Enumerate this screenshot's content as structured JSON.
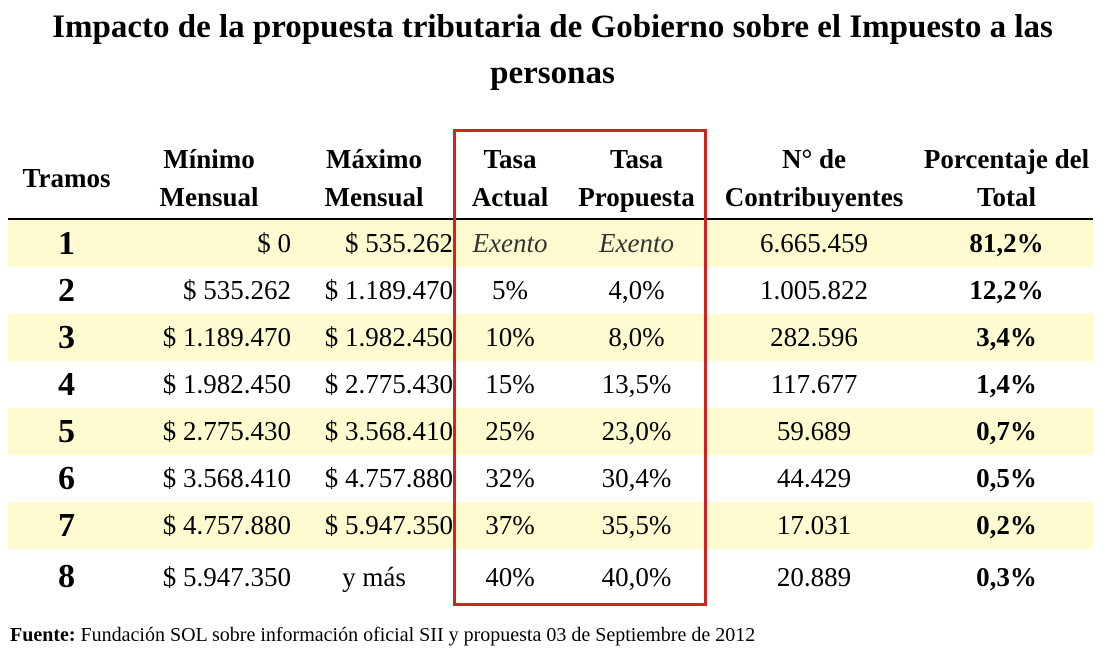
{
  "title": "Impacto de la propuesta tributaria de Gobierno sobre el Impuesto a las personas",
  "columns": {
    "tramos": "Tramos",
    "minimo": "Mínimo Mensual",
    "maximo": "Máximo Mensual",
    "tasa_actual": "Tasa Actual",
    "tasa_propuesta": "Tasa Propuesta",
    "contribuyentes": "N° de Contribuyentes",
    "porcentaje": "Porcentaje del Total"
  },
  "rows": [
    {
      "tramo": "1",
      "minimo": "$ 0",
      "maximo": "$ 535.262",
      "tasa_actual": "Exento",
      "tasa_propuesta": "Exento",
      "contribuyentes": "6.665.459",
      "porcentaje": "81,2%"
    },
    {
      "tramo": "2",
      "minimo": "$ 535.262",
      "maximo": "$ 1.189.470",
      "tasa_actual": "5%",
      "tasa_propuesta": "4,0%",
      "contribuyentes": "1.005.822",
      "porcentaje": "12,2%"
    },
    {
      "tramo": "3",
      "minimo": "$ 1.189.470",
      "maximo": "$ 1.982.450",
      "tasa_actual": "10%",
      "tasa_propuesta": "8,0%",
      "contribuyentes": "282.596",
      "porcentaje": "3,4%"
    },
    {
      "tramo": "4",
      "minimo": "$ 1.982.450",
      "maximo": "$ 2.775.430",
      "tasa_actual": "15%",
      "tasa_propuesta": "13,5%",
      "contribuyentes": "117.677",
      "porcentaje": "1,4%"
    },
    {
      "tramo": "5",
      "minimo": "$ 2.775.430",
      "maximo": "$ 3.568.410",
      "tasa_actual": "25%",
      "tasa_propuesta": "23,0%",
      "contribuyentes": "59.689",
      "porcentaje": "0,7%"
    },
    {
      "tramo": "6",
      "minimo": "$ 3.568.410",
      "maximo": "$ 4.757.880",
      "tasa_actual": "32%",
      "tasa_propuesta": "30,4%",
      "contribuyentes": "44.429",
      "porcentaje": "0,5%"
    },
    {
      "tramo": "7",
      "minimo": "$ 4.757.880",
      "maximo": "$ 5.947.350",
      "tasa_actual": "37%",
      "tasa_propuesta": "35,5%",
      "contribuyentes": "17.031",
      "porcentaje": "0,2%"
    },
    {
      "tramo": "8",
      "minimo": "$ 5.947.350",
      "maximo": "y más",
      "tasa_actual": "40%",
      "tasa_propuesta": "40,0%",
      "contribuyentes": "20.889",
      "porcentaje": "0,3%"
    }
  ],
  "source": {
    "label": "Fuente:",
    "text": " Fundación SOL sobre información oficial SII y propuesta 03 de Septiembre de 2012"
  },
  "colors": {
    "row_shade": "#fffbd0",
    "highlight_box": "#d42020"
  }
}
